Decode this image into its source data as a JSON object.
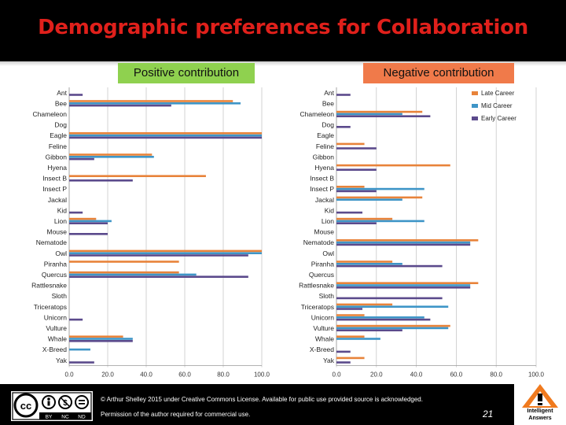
{
  "title": "Demographic preferences for Collaboration",
  "tags": {
    "positive": "Positive contribution",
    "negative": "Negative contribution"
  },
  "colors": {
    "late": "#e8833a",
    "mid": "#3e95c7",
    "early": "#5b4a8c",
    "title": "#e0201b",
    "positive_tag": "#8fd14f",
    "negative_tag": "#f07a4a"
  },
  "footer": {
    "license_line1": "© Arthur Shelley 2015 under Creative Commons License. Available for public use provided source is acknowledged.",
    "license_line2": "Permission of the author required for commercial use.",
    "page_number": "21",
    "cc_icon": "creative-commons-by-nc-nd-icon",
    "cc_labels": [
      "BY",
      "NC",
      "ND"
    ],
    "logo_line1": "Intelligent",
    "logo_line2": "Answers"
  },
  "chart_data": [
    {
      "type": "bar",
      "orientation": "horizontal",
      "title": "",
      "categories": [
        "Ant",
        "Bee",
        "Chameleon",
        "Dog",
        "Eagle",
        "Feline",
        "Gibbon",
        "Hyena",
        "Insect B",
        "Insect P",
        "Jackal",
        "Kid",
        "Lion",
        "Mouse",
        "Nematode",
        "Owl",
        "Piranha",
        "Quercus",
        "Rattlesnake",
        "Sloth",
        "Triceratops",
        "Unicorn",
        "Vulture",
        "Whale",
        "X-Breed",
        "Yak"
      ],
      "xlim": [
        0,
        100
      ],
      "xticks": [
        "0.0",
        "20.0",
        "40.0",
        "60.0",
        "80.0",
        "100.0"
      ],
      "legend": "none",
      "grid": true,
      "series": [
        {
          "name": "Late Career",
          "values": [
            0,
            85,
            0,
            0,
            100,
            0,
            43,
            0,
            71,
            0,
            0,
            0,
            14,
            0,
            0,
            100,
            57,
            57,
            0,
            0,
            0,
            0,
            0,
            28,
            0,
            0
          ]
        },
        {
          "name": "Mid Career",
          "values": [
            0,
            89,
            0,
            0,
            100,
            0,
            44,
            0,
            0,
            0,
            0,
            0,
            22,
            0,
            0,
            100,
            0,
            66,
            0,
            0,
            0,
            0,
            0,
            33,
            11,
            0
          ]
        },
        {
          "name": "Early Career",
          "values": [
            7,
            53,
            0,
            0,
            100,
            0,
            13,
            0,
            33,
            0,
            0,
            7,
            20,
            20,
            0,
            93,
            0,
            93,
            0,
            0,
            0,
            7,
            0,
            33,
            0,
            13
          ]
        }
      ]
    },
    {
      "type": "bar",
      "orientation": "horizontal",
      "title": "",
      "categories": [
        "Ant",
        "Bee",
        "Chameleon",
        "Dog",
        "Eagle",
        "Feline",
        "Gibbon",
        "Hyena",
        "Insect B",
        "Insect P",
        "Jackal",
        "Kid",
        "Lion",
        "Mouse",
        "Nematode",
        "Owl",
        "Piranha",
        "Quercus",
        "Rattlesnake",
        "Sloth",
        "Triceratops",
        "Unicorn",
        "Vulture",
        "Whale",
        "X-Breed",
        "Yak"
      ],
      "xlim": [
        0,
        100
      ],
      "xticks": [
        "0.0",
        "20.0",
        "40.0",
        "60.0",
        "80.0",
        "100.0"
      ],
      "legend": "top-right",
      "grid": true,
      "series": [
        {
          "name": "Late Career",
          "values": [
            0,
            0,
            43,
            0,
            0,
            14,
            0,
            57,
            0,
            14,
            43,
            0,
            28,
            0,
            71,
            0,
            28,
            0,
            71,
            0,
            28,
            14,
            57,
            14,
            0,
            14
          ]
        },
        {
          "name": "Mid Career",
          "values": [
            0,
            0,
            33,
            0,
            0,
            0,
            0,
            0,
            0,
            44,
            33,
            0,
            44,
            0,
            67,
            0,
            33,
            0,
            67,
            0,
            56,
            44,
            56,
            22,
            0,
            0
          ]
        },
        {
          "name": "Early Career",
          "values": [
            7,
            0,
            47,
            7,
            0,
            20,
            0,
            20,
            0,
            20,
            0,
            13,
            20,
            0,
            67,
            0,
            53,
            0,
            67,
            53,
            13,
            47,
            33,
            0,
            7,
            7
          ]
        }
      ]
    }
  ]
}
